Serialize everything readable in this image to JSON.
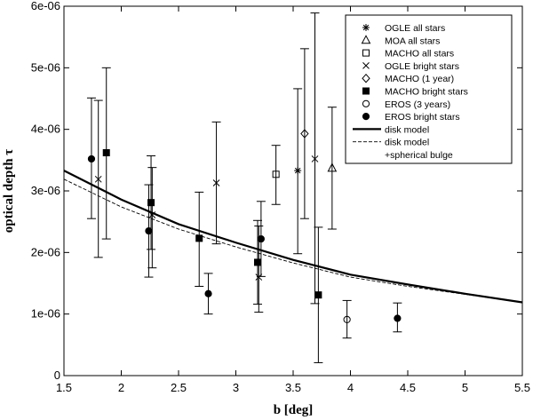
{
  "chart_data": {
    "type": "scatter",
    "xlabel": "b [deg]",
    "ylabel": "optical depth τ",
    "xlim": [
      1.5,
      5.5
    ],
    "ylim": [
      0,
      6e-06
    ],
    "x_ticks": [
      1.5,
      2,
      2.5,
      3,
      3.5,
      4,
      4.5,
      5,
      5.5
    ],
    "x_tick_labels": [
      "1.5",
      "2",
      "2.5",
      "3",
      "3.5",
      "4",
      "4.5",
      "5",
      "5.5"
    ],
    "y_ticks": [
      0,
      1e-06,
      2e-06,
      3e-06,
      4e-06,
      5e-06,
      6e-06
    ],
    "y_tick_labels": [
      "0",
      "1e-06",
      "2e-06",
      "3e-06",
      "4e-06",
      "5e-06",
      "6e-06"
    ],
    "legend_position": "top-right",
    "series": [
      {
        "name": "OGLE all stars",
        "marker": "asterisk",
        "points": [
          {
            "x": 3.54,
            "y": 3.33e-06,
            "ylo": 1.98e-06,
            "yhi": 4.66e-06
          }
        ]
      },
      {
        "name": "MOA all stars",
        "marker": "triangle",
        "points": [
          {
            "x": 3.84,
            "y": 3.37e-06,
            "ylo": 2.38e-06,
            "yhi": 4.36e-06
          }
        ]
      },
      {
        "name": "MACHO all stars",
        "marker": "square",
        "points": [
          {
            "x": 3.35,
            "y": 3.27e-06,
            "ylo": 2.78e-06,
            "yhi": 3.74e-06
          }
        ]
      },
      {
        "name": "OGLE bright stars",
        "marker": "x",
        "points": [
          {
            "x": 1.8,
            "y": 3.19e-06,
            "ylo": 1.92e-06,
            "yhi": 4.47e-06
          },
          {
            "x": 2.27,
            "y": 2.61e-06,
            "ylo": 1.75e-06,
            "yhi": 3.38e-06
          },
          {
            "x": 2.83,
            "y": 3.13e-06,
            "ylo": 2.14e-06,
            "yhi": 4.12e-06
          },
          {
            "x": 3.2,
            "y": 1.6e-06,
            "ylo": 1.03e-06,
            "yhi": 2.43e-06
          },
          {
            "x": 3.69,
            "y": 3.52e-06,
            "ylo": 1.17e-06,
            "yhi": 5.89e-06
          }
        ]
      },
      {
        "name": "MACHO (1 year)",
        "marker": "diamond",
        "points": [
          {
            "x": 3.6,
            "y": 3.93e-06,
            "ylo": 2.55e-06,
            "yhi": 5.31e-06
          }
        ]
      },
      {
        "name": "MACHO bright stars",
        "marker": "filled-square",
        "points": [
          {
            "x": 1.87,
            "y": 3.62e-06,
            "ylo": 2.22e-06,
            "yhi": 5e-06
          },
          {
            "x": 2.26,
            "y": 2.81e-06,
            "ylo": 2.05e-06,
            "yhi": 3.57e-06
          },
          {
            "x": 2.68,
            "y": 2.23e-06,
            "ylo": 1.45e-06,
            "yhi": 2.98e-06
          },
          {
            "x": 3.19,
            "y": 1.84e-06,
            "ylo": 1.16e-06,
            "yhi": 2.52e-06
          },
          {
            "x": 3.72,
            "y": 1.31e-06,
            "ylo": 2.1e-07,
            "yhi": 2.41e-06
          }
        ]
      },
      {
        "name": "EROS (3 years)",
        "marker": "circle",
        "points": [
          {
            "x": 3.97,
            "y": 9.1e-07,
            "ylo": 6.1e-07,
            "yhi": 1.22e-06
          }
        ]
      },
      {
        "name": "EROS bright stars",
        "marker": "filled-circle",
        "points": [
          {
            "x": 1.74,
            "y": 3.52e-06,
            "ylo": 2.55e-06,
            "yhi": 4.51e-06
          },
          {
            "x": 2.24,
            "y": 2.35e-06,
            "ylo": 1.6e-06,
            "yhi": 3.1e-06
          },
          {
            "x": 2.76,
            "y": 1.33e-06,
            "ylo": 1e-06,
            "yhi": 1.66e-06
          },
          {
            "x": 3.22,
            "y": 2.22e-06,
            "ylo": 1.61e-06,
            "yhi": 2.83e-06
          },
          {
            "x": 4.41,
            "y": 9.3e-07,
            "ylo": 7.1e-07,
            "yhi": 1.18e-06
          }
        ]
      }
    ],
    "lines": [
      {
        "name": "disk model",
        "style": "solid",
        "x": [
          1.5,
          2.0,
          2.5,
          3.0,
          3.5,
          4.0,
          4.5,
          5.0,
          5.5
        ],
        "y": [
          3.33e-06,
          2.86e-06,
          2.46e-06,
          2.16e-06,
          1.88e-06,
          1.64e-06,
          1.48e-06,
          1.33e-06,
          1.19e-06
        ]
      },
      {
        "name": "disk model +spherical bulge",
        "style": "dashed",
        "x": [
          1.5,
          2.0,
          2.5,
          3.0,
          3.5,
          4.0,
          4.5,
          5.0,
          5.5
        ],
        "y": [
          3.19e-06,
          2.74e-06,
          2.38e-06,
          2.09e-06,
          1.83e-06,
          1.6e-06,
          1.45e-06,
          1.32e-06,
          1.19e-06
        ]
      }
    ],
    "legend": [
      {
        "label": "OGLE all stars",
        "marker": "asterisk"
      },
      {
        "label": "MOA all stars",
        "marker": "triangle"
      },
      {
        "label": "MACHO all stars",
        "marker": "square"
      },
      {
        "label": "OGLE bright stars",
        "marker": "x"
      },
      {
        "label": "MACHO (1 year)",
        "marker": "diamond"
      },
      {
        "label": "MACHO bright stars",
        "marker": "filled-square"
      },
      {
        "label": "EROS (3 years)",
        "marker": "circle"
      },
      {
        "label": "EROS bright stars",
        "marker": "filled-circle"
      },
      {
        "label": "disk model",
        "marker": "solid-line"
      },
      {
        "label": "disk model",
        "marker": "dashed-line"
      },
      {
        "label": "+spherical bulge",
        "marker": "none"
      }
    ]
  }
}
